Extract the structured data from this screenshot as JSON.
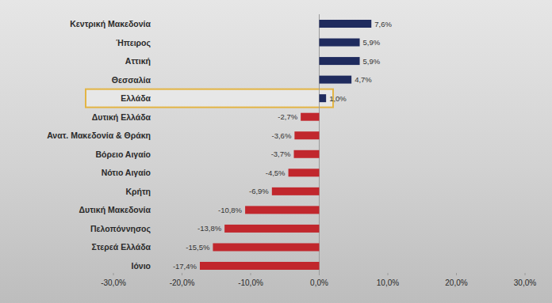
{
  "chart_data": {
    "type": "bar",
    "orientation": "horizontal",
    "categories": [
      "Κεντρική Μακεδονία",
      "Ήπειρος",
      "Αττική",
      "Θεσσαλία",
      "Ελλάδα",
      "Δυτική Ελλάδα",
      "Ανατ. Μακεδονία & Θράκη",
      "Βόρειο Αιγαίο",
      "Νότιο Αιγαίο",
      "Κρήτη",
      "Δυτική Μακεδονία",
      "Πελοπόννησος",
      "Στερεά Ελλάδα",
      "Ιόνιο"
    ],
    "values": [
      7.6,
      5.9,
      5.9,
      4.7,
      1.0,
      -2.7,
      -3.6,
      -3.7,
      -4.5,
      -6.9,
      -10.8,
      -13.8,
      -15.5,
      -17.4
    ],
    "value_labels": [
      "7,6%",
      "5,9%",
      "5,9%",
      "4,7%",
      "1,0%",
      "-2,7%",
      "-3,6%",
      "-3,7%",
      "-4,5%",
      "-6,9%",
      "-10,8%",
      "-13,8%",
      "-15,5%",
      "-17,4%"
    ],
    "colors": [
      "#1f2b5e",
      "#1f2b5e",
      "#1f2b5e",
      "#1f2b5e",
      "#1f2b5e",
      "#c1272d",
      "#c1272d",
      "#c1272d",
      "#c1272d",
      "#c1272d",
      "#c1272d",
      "#c1272d",
      "#c1272d",
      "#c1272d"
    ],
    "xlim": [
      -30,
      30
    ],
    "xticks": [
      {
        "value": -30,
        "label": "-30,0%"
      },
      {
        "value": -20,
        "label": "-20,0%"
      },
      {
        "value": -10,
        "label": "-10,0%"
      },
      {
        "value": 0,
        "label": "0,0%"
      },
      {
        "value": 10,
        "label": "10,0%"
      },
      {
        "value": 20,
        "label": "20,0%"
      },
      {
        "value": 30,
        "label": "30,0%"
      }
    ],
    "data_labels": true,
    "grid": false
  }
}
